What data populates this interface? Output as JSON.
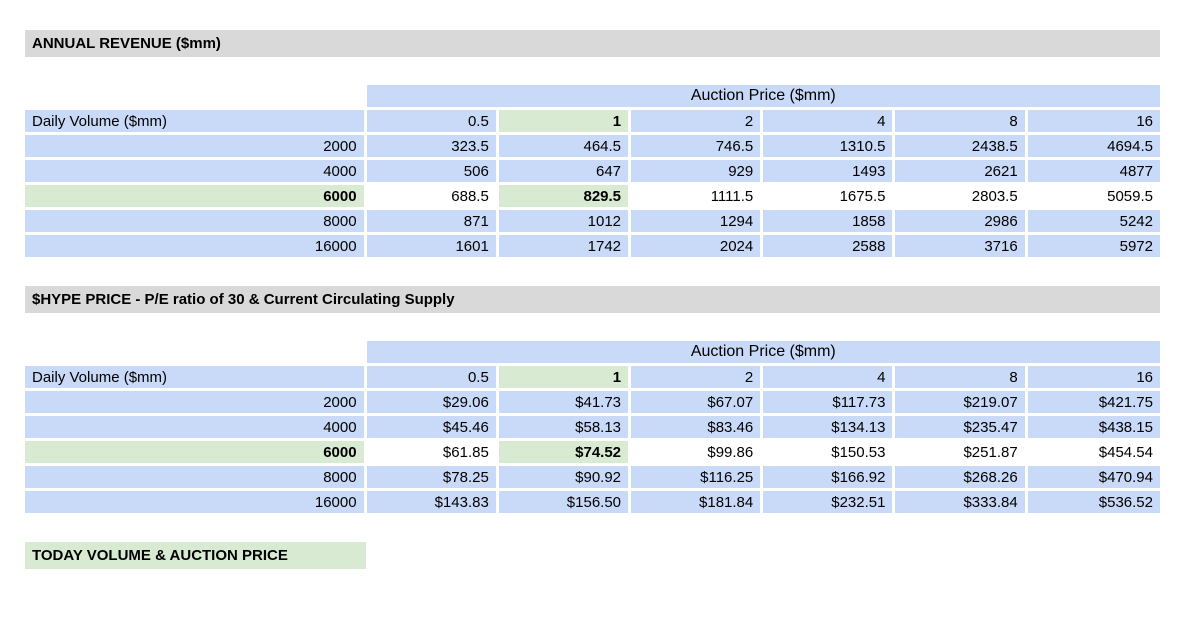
{
  "colors": {
    "section_header_gray": "#d9d9d9",
    "cell_blue": "#c9daf8",
    "highlight_green": "#d9ead3"
  },
  "section1": {
    "title": "ANNUAL REVENUE ($mm)",
    "table": {
      "merged_header": "Auction Price ($mm)",
      "row_label_header": "Daily Volume ($mm)",
      "col_headers": [
        "0.5",
        "1",
        "2",
        "4",
        "8",
        "16"
      ],
      "highlight_col_index": 1,
      "rows": [
        {
          "label": "2000",
          "highlight": false,
          "values": [
            "323.5",
            "464.5",
            "746.5",
            "1310.5",
            "2438.5",
            "4694.5"
          ]
        },
        {
          "label": "4000",
          "highlight": false,
          "values": [
            "506",
            "647",
            "929",
            "1493",
            "2621",
            "4877"
          ]
        },
        {
          "label": "6000",
          "highlight": true,
          "values": [
            "688.5",
            "829.5",
            "1111.5",
            "1675.5",
            "2803.5",
            "5059.5"
          ]
        },
        {
          "label": "8000",
          "highlight": false,
          "values": [
            "871",
            "1012",
            "1294",
            "1858",
            "2986",
            "5242"
          ]
        },
        {
          "label": "16000",
          "highlight": false,
          "values": [
            "1601",
            "1742",
            "2024",
            "2588",
            "3716",
            "5972"
          ]
        }
      ]
    }
  },
  "section2": {
    "title": "$HYPE PRICE - P/E ratio of 30 & Current Circulating Supply",
    "table": {
      "merged_header": "Auction Price ($mm)",
      "row_label_header": "Daily Volume ($mm)",
      "col_headers": [
        "0.5",
        "1",
        "2",
        "4",
        "8",
        "16"
      ],
      "highlight_col_index": 1,
      "rows": [
        {
          "label": "2000",
          "highlight": false,
          "values": [
            "$29.06",
            "$41.73",
            "$67.07",
            "$117.73",
            "$219.07",
            "$421.75"
          ]
        },
        {
          "label": "4000",
          "highlight": false,
          "values": [
            "$45.46",
            "$58.13",
            "$83.46",
            "$134.13",
            "$235.47",
            "$438.15"
          ]
        },
        {
          "label": "6000",
          "highlight": true,
          "values": [
            "$61.85",
            "$74.52",
            "$99.86",
            "$150.53",
            "$251.87",
            "$454.54"
          ]
        },
        {
          "label": "8000",
          "highlight": false,
          "values": [
            "$78.25",
            "$90.92",
            "$116.25",
            "$166.92",
            "$268.26",
            "$470.94"
          ]
        },
        {
          "label": "16000",
          "highlight": false,
          "values": [
            "$143.83",
            "$156.50",
            "$181.84",
            "$232.51",
            "$333.84",
            "$536.52"
          ]
        }
      ]
    }
  },
  "footer": {
    "title": "TODAY VOLUME & AUCTION PRICE"
  }
}
